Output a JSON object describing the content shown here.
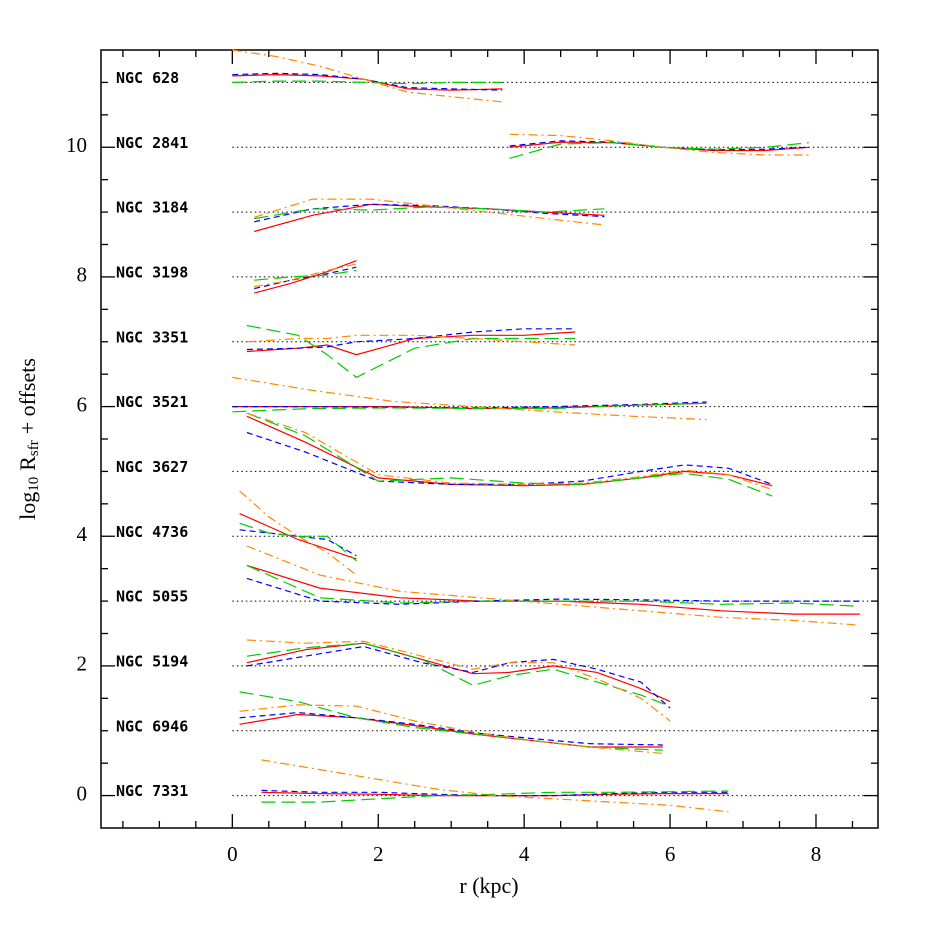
{
  "chart_data": {
    "type": "line",
    "xlabel": "r (kpc)",
    "ylabel": [
      "log",
      "10",
      "R",
      "sfr",
      "+ offsets"
    ],
    "xlim": [
      -1.8,
      8.85
    ],
    "ylim": [
      -0.5,
      11.5
    ],
    "xticks": [
      0,
      2,
      4,
      6,
      8
    ],
    "yticks": [
      0,
      2,
      4,
      6,
      8,
      10
    ],
    "xminorticks": [
      -1.5,
      -1,
      -0.5,
      0.5,
      1,
      1.5,
      2.5,
      3,
      3.5,
      4.5,
      5,
      5.5,
      6.5,
      7,
      7.5,
      8.5
    ],
    "yminorticks": [
      0.5,
      1,
      1.5,
      2.5,
      3,
      3.5,
      4.5,
      5,
      5.5,
      6.5,
      7,
      7.5,
      8.5,
      9,
      9.5,
      10.5,
      11
    ],
    "line_styles": [
      {
        "color": "#ff0000",
        "dash": "solid"
      },
      {
        "color": "#0000ff",
        "dash": "dashed"
      },
      {
        "color": "#00cc00",
        "dash": "longdash"
      },
      {
        "color": "#ff8800",
        "dash": "dashdot"
      }
    ],
    "galaxies": [
      {
        "name": "NGC 628",
        "offset": 11,
        "x": [
          0,
          0.6,
          1.2,
          1.8,
          2.4,
          3.0,
          3.7
        ],
        "series": [
          [
            11.1,
            11.12,
            11.1,
            11.05,
            10.9,
            10.88,
            10.9
          ],
          [
            11.12,
            11.14,
            11.12,
            11.05,
            10.92,
            10.9,
            10.88
          ],
          [
            11.0,
            11.02,
            11.02,
            11.0,
            10.98,
            11.0,
            11.0
          ],
          [
            11.5,
            11.4,
            11.25,
            11.05,
            10.85,
            10.78,
            10.7
          ]
        ]
      },
      {
        "name": "NGC 2841",
        "offset": 10,
        "x": [
          3.8,
          4.5,
          5.2,
          5.9,
          6.6,
          7.3,
          7.9
        ],
        "series": [
          [
            10.0,
            10.08,
            10.07,
            10.0,
            9.95,
            9.95,
            10.0
          ],
          [
            10.02,
            10.1,
            10.08,
            10.0,
            9.96,
            9.97,
            10.0
          ],
          [
            9.83,
            10.05,
            10.07,
            10.0,
            9.97,
            10.0,
            10.07
          ],
          [
            10.2,
            10.18,
            10.1,
            10.0,
            9.92,
            9.88,
            9.88
          ]
        ]
      },
      {
        "name": "NGC 3184",
        "offset": 9,
        "x": [
          0.3,
          1.1,
          1.9,
          2.7,
          3.5,
          4.3,
          5.1
        ],
        "series": [
          [
            8.7,
            8.95,
            9.12,
            9.08,
            9.05,
            9.0,
            8.95
          ],
          [
            8.85,
            9.05,
            9.12,
            9.1,
            9.05,
            8.98,
            8.93
          ],
          [
            8.9,
            9.05,
            9.03,
            9.08,
            9.05,
            9.0,
            9.05
          ],
          [
            8.92,
            9.2,
            9.2,
            9.1,
            9.0,
            8.9,
            8.8
          ]
        ]
      },
      {
        "name": "NGC 3198",
        "offset": 8,
        "x": [
          0.3,
          0.8,
          1.3,
          1.7
        ],
        "series": [
          [
            7.75,
            7.9,
            8.08,
            8.25
          ],
          [
            7.82,
            7.95,
            8.05,
            8.15
          ],
          [
            7.95,
            8.0,
            8.03,
            8.1
          ],
          [
            7.85,
            7.95,
            8.1,
            8.2
          ]
        ]
      },
      {
        "name": "NGC 3351",
        "offset": 7,
        "x": [
          0.2,
          0.9,
          1.3,
          1.7,
          2.5,
          3.3,
          4.0,
          4.7
        ],
        "series": [
          [
            6.85,
            6.9,
            6.95,
            6.8,
            7.05,
            7.1,
            7.1,
            7.15
          ],
          [
            6.88,
            6.9,
            6.92,
            7.0,
            7.05,
            7.15,
            7.2,
            7.2
          ],
          [
            7.25,
            7.1,
            6.8,
            6.45,
            6.9,
            7.05,
            7.05,
            7.05
          ],
          [
            7.0,
            7.05,
            7.05,
            7.1,
            7.1,
            7.05,
            7.0,
            6.95
          ]
        ]
      },
      {
        "name": "NGC 3521",
        "offset": 6,
        "x": [
          0,
          1.1,
          2.2,
          3.3,
          4.4,
          5.5,
          6.5
        ],
        "series": [
          [
            6.0,
            6.0,
            6.0,
            5.97,
            5.98,
            6.02,
            6.05
          ],
          [
            6.0,
            6.0,
            5.99,
            5.98,
            6.0,
            6.03,
            6.07
          ],
          [
            5.92,
            5.97,
            5.98,
            5.97,
            5.97,
            6.02,
            6.05
          ],
          [
            6.45,
            6.25,
            6.08,
            6.0,
            5.92,
            5.85,
            5.8
          ]
        ]
      },
      {
        "name": "NGC 3627",
        "offset": 5,
        "x": [
          0.2,
          1.0,
          2.0,
          3.0,
          4.0,
          4.8,
          5.6,
          6.2,
          6.8,
          7.4
        ],
        "series": [
          [
            5.85,
            5.45,
            4.9,
            4.8,
            4.78,
            4.8,
            4.9,
            5.0,
            4.95,
            4.78
          ],
          [
            5.6,
            5.3,
            4.85,
            4.8,
            4.8,
            4.85,
            5.0,
            5.1,
            5.05,
            4.8
          ],
          [
            5.9,
            5.55,
            4.85,
            4.9,
            4.82,
            4.8,
            4.9,
            4.97,
            4.88,
            4.62
          ],
          [
            5.9,
            5.6,
            4.95,
            4.82,
            4.8,
            4.82,
            4.92,
            5.02,
            4.95,
            4.72
          ]
        ]
      },
      {
        "name": "NGC 4736",
        "offset": 4,
        "x": [
          0.1,
          0.5,
          0.9,
          1.3,
          1.7
        ],
        "series": [
          [
            4.35,
            4.15,
            3.95,
            3.8,
            3.65
          ],
          [
            4.1,
            4.05,
            4.0,
            3.95,
            3.7
          ],
          [
            4.2,
            4.05,
            4.0,
            4.0,
            3.62
          ],
          [
            4.7,
            4.3,
            4.0,
            3.75,
            3.4
          ]
        ]
      },
      {
        "name": "NGC 5055",
        "offset": 3,
        "x": [
          0.2,
          1.2,
          2.3,
          3.4,
          4.5,
          5.6,
          6.7,
          7.7,
          8.6
        ],
        "series": [
          [
            3.55,
            3.2,
            3.05,
            3.0,
            3.0,
            2.95,
            2.85,
            2.8,
            2.8
          ],
          [
            3.35,
            3.0,
            2.95,
            3.0,
            3.03,
            3.02,
            3.0,
            3.0,
            3.0
          ],
          [
            3.55,
            3.05,
            2.97,
            3.0,
            3.0,
            3.0,
            2.95,
            2.97,
            2.92
          ],
          [
            3.85,
            3.4,
            3.15,
            3.05,
            2.95,
            2.85,
            2.75,
            2.7,
            2.63
          ]
        ]
      },
      {
        "name": "NGC 5194",
        "offset": 2,
        "x": [
          0.2,
          1.0,
          1.8,
          2.6,
          3.3,
          3.8,
          4.4,
          5.0,
          5.6,
          6.0
        ],
        "series": [
          [
            2.05,
            2.25,
            2.35,
            2.1,
            1.88,
            1.9,
            2.0,
            1.9,
            1.65,
            1.45
          ],
          [
            2.0,
            2.15,
            2.3,
            2.05,
            1.9,
            2.05,
            2.1,
            1.95,
            1.75,
            1.35
          ],
          [
            2.15,
            2.28,
            2.35,
            2.1,
            1.7,
            1.85,
            1.95,
            1.75,
            1.55,
            1.38
          ],
          [
            2.4,
            2.35,
            2.38,
            2.15,
            1.95,
            2.05,
            2.05,
            1.8,
            1.5,
            1.15
          ]
        ]
      },
      {
        "name": "NGC 6946",
        "offset": 1,
        "x": [
          0.1,
          0.9,
          1.7,
          2.5,
          3.3,
          4.1,
          4.9,
          5.9
        ],
        "series": [
          [
            1.1,
            1.25,
            1.2,
            1.08,
            0.95,
            0.85,
            0.75,
            0.75
          ],
          [
            1.2,
            1.28,
            1.2,
            1.1,
            0.97,
            0.88,
            0.8,
            0.78
          ],
          [
            1.6,
            1.45,
            1.2,
            1.05,
            0.95,
            0.85,
            0.75,
            0.7
          ],
          [
            1.3,
            1.4,
            1.38,
            1.15,
            0.98,
            0.85,
            0.75,
            0.65
          ]
        ]
      },
      {
        "name": "NGC 7331",
        "offset": 0,
        "x": [
          0.4,
          1.2,
          2.0,
          2.8,
          3.6,
          4.4,
          5.2,
          6.0,
          6.8
        ],
        "series": [
          [
            0.05,
            0.03,
            0.02,
            0.0,
            0.0,
            0.0,
            0.02,
            0.03,
            0.03
          ],
          [
            0.08,
            0.05,
            0.05,
            0.02,
            0.0,
            0.0,
            0.03,
            0.05,
            0.05
          ],
          [
            -0.1,
            -0.1,
            -0.05,
            0.0,
            0.02,
            0.05,
            0.05,
            0.06,
            0.07
          ],
          [
            0.55,
            0.4,
            0.25,
            0.1,
            0.0,
            -0.05,
            -0.1,
            -0.15,
            -0.25
          ]
        ]
      }
    ]
  }
}
